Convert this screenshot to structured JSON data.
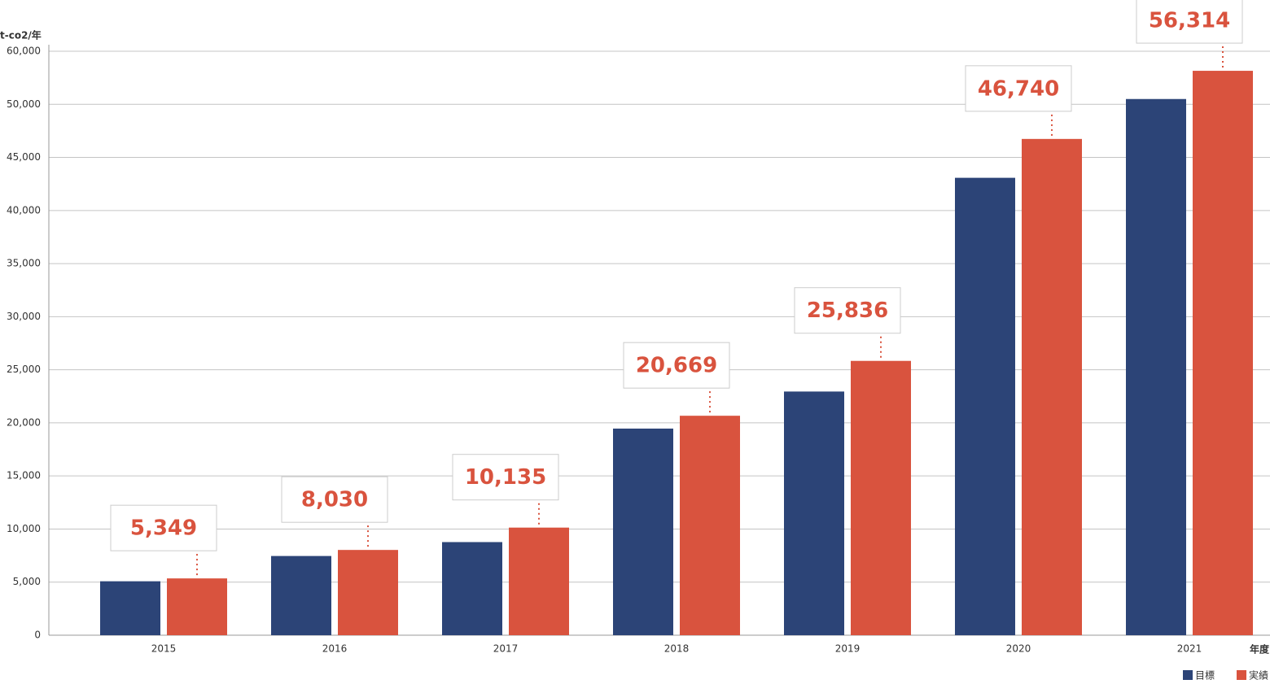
{
  "chart_data": {
    "type": "bar",
    "y_axis_label": "t-co2/年",
    "x_axis_label": "年度",
    "categories": [
      "2015",
      "2016",
      "2017",
      "2018",
      "2019",
      "2020",
      "2021"
    ],
    "series": [
      {
        "name": "目標",
        "color": "#2c4477",
        "values": [
          5080,
          7460,
          8770,
          19460,
          22950,
          43080,
          51000
        ]
      },
      {
        "name": "実績",
        "color": "#d9533e",
        "values": [
          5349,
          8030,
          10135,
          20669,
          25836,
          46740,
          56314
        ],
        "value_labels": [
          "5,349",
          "8,030",
          "10,135",
          "20,669",
          "25,836",
          "46,740",
          "56,314"
        ]
      }
    ],
    "ylim": [
      0,
      60000
    ],
    "yticks": [
      0,
      {
        "value": 5000,
        "label": "5,000"
      },
      {
        "value": 10000,
        "label": "10,000"
      },
      {
        "value": 15000,
        "label": "15,000"
      },
      {
        "value": 20000,
        "label": "20,000"
      },
      {
        "value": 25000,
        "label": "25,000"
      },
      {
        "value": 30000,
        "label": "30,000"
      },
      {
        "value": 35000,
        "label": "35,000"
      },
      {
        "value": 40000,
        "label": "40,000"
      },
      {
        "value": 45000,
        "label": "45,000"
      },
      {
        "value": 50000,
        "label": "50,000"
      },
      {
        "value": 60000,
        "label": "60,000"
      }
    ],
    "grid": true,
    "legend": "bottom-right"
  }
}
